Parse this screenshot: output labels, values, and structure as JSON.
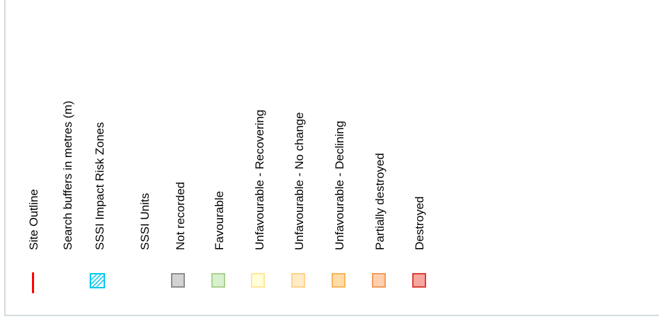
{
  "legend": {
    "items": [
      {
        "label": "Site Outline",
        "symbol": "line-icon",
        "stroke": "#ff0000"
      },
      {
        "label": "Search buffers in metres (m)",
        "symbol": "none"
      },
      {
        "label": "SSSI Impact Risk Zones",
        "symbol": "hatched-square-icon",
        "stroke": "#00c8f0"
      },
      {
        "label": "SSSI Units",
        "symbol": "none"
      },
      {
        "label": "Not recorded",
        "symbol": "square-icon",
        "fill": "#d3d3d3",
        "stroke": "#8c8c8c"
      },
      {
        "label": "Favourable",
        "symbol": "square-icon",
        "fill": "#d9f0cc",
        "stroke": "#a9d18e"
      },
      {
        "label": "Unfavourable - Recovering",
        "symbol": "square-icon",
        "fill": "#ffffd9",
        "stroke": "#ffe699"
      },
      {
        "label": "Unfavourable - No change",
        "symbol": "square-icon",
        "fill": "#ffecc7",
        "stroke": "#ffd28a"
      },
      {
        "label": "Unfavourable - Declining",
        "symbol": "square-icon",
        "fill": "#ffdca8",
        "stroke": "#f8b45a"
      },
      {
        "label": "Partially destroyed",
        "symbol": "square-icon",
        "fill": "#ffcfae",
        "stroke": "#f29b5b"
      },
      {
        "label": "Destroyed",
        "symbol": "square-icon",
        "fill": "#f6a7a0",
        "stroke": "#e03c31"
      }
    ]
  }
}
